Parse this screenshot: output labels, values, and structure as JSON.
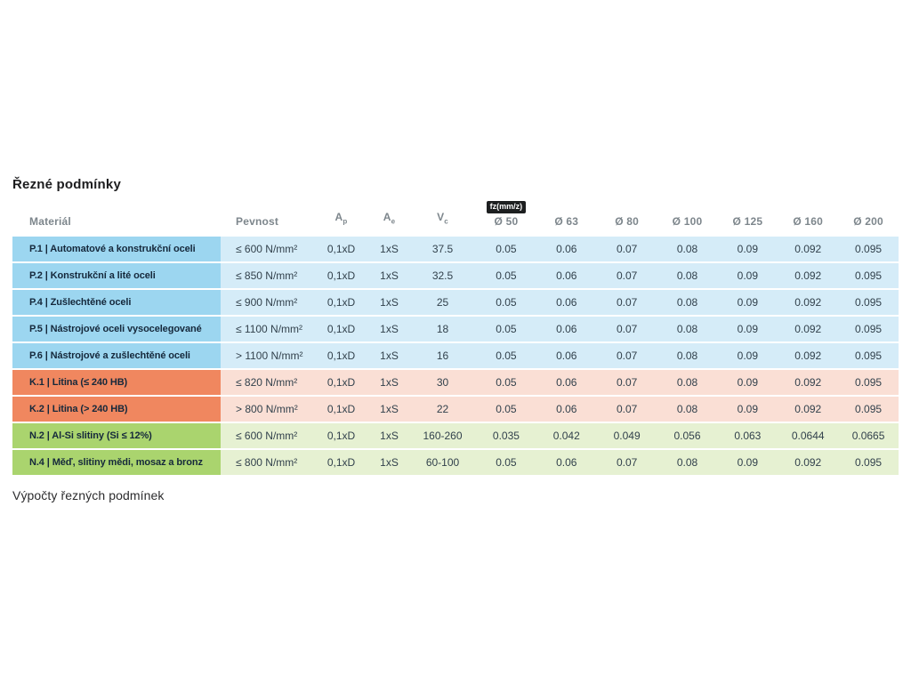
{
  "page": {
    "title": "Řezné podmínky",
    "footer_text": "Výpočty řezných podmínek",
    "background": "#ffffff"
  },
  "table": {
    "headers": {
      "material": "Materiál",
      "pevnost": "Pevnost",
      "ap": {
        "base": "A",
        "sub": "p"
      },
      "ae": {
        "base": "A",
        "sub": "e"
      },
      "vc": {
        "base": "V",
        "sub": "c"
      },
      "diameters": [
        "Ø 50",
        "Ø 63",
        "Ø 80",
        "Ø 100",
        "Ø 125",
        "Ø 160",
        "Ø 200"
      ]
    },
    "fz_badge": {
      "label": "fz(mm/z)",
      "bg": "#1d1f20",
      "fg": "#ffffff"
    },
    "group_colors": {
      "P": {
        "strong": "#9cd6f0",
        "light": "#d5ecf8"
      },
      "K": {
        "strong": "#f0875f",
        "light": "#fadfd5"
      },
      "N": {
        "strong": "#aad46e",
        "light": "#e6f1d2"
      }
    },
    "rows": [
      {
        "group": "P",
        "material": "P.1 | Automatové a konstrukční oceli",
        "pevnost": "≤ 600 N/mm²",
        "ap": "0,1xD",
        "ae": "1xS",
        "vc": "37.5",
        "fz": [
          "0.05",
          "0.06",
          "0.07",
          "0.08",
          "0.09",
          "0.092",
          "0.095"
        ]
      },
      {
        "group": "P",
        "material": "P.2 | Konstrukční a lité oceli",
        "pevnost": "≤ 850 N/mm²",
        "ap": "0,1xD",
        "ae": "1xS",
        "vc": "32.5",
        "fz": [
          "0.05",
          "0.06",
          "0.07",
          "0.08",
          "0.09",
          "0.092",
          "0.095"
        ]
      },
      {
        "group": "P",
        "material": "P.4 | Zušlechtěné oceli",
        "pevnost": "≤ 900 N/mm²",
        "ap": "0,1xD",
        "ae": "1xS",
        "vc": "25",
        "fz": [
          "0.05",
          "0.06",
          "0.07",
          "0.08",
          "0.09",
          "0.092",
          "0.095"
        ]
      },
      {
        "group": "P",
        "material": "P.5 | Nástrojové oceli vysocelegované",
        "pevnost": "≤ 1100 N/mm²",
        "ap": "0,1xD",
        "ae": "1xS",
        "vc": "18",
        "fz": [
          "0.05",
          "0.06",
          "0.07",
          "0.08",
          "0.09",
          "0.092",
          "0.095"
        ]
      },
      {
        "group": "P",
        "material": "P.6 | Nástrojové a zušlechtěné oceli",
        "pevnost": "> 1100 N/mm²",
        "ap": "0,1xD",
        "ae": "1xS",
        "vc": "16",
        "fz": [
          "0.05",
          "0.06",
          "0.07",
          "0.08",
          "0.09",
          "0.092",
          "0.095"
        ]
      },
      {
        "group": "K",
        "material": "K.1 | Litina (≤ 240 HB)",
        "pevnost": "≤ 820 N/mm²",
        "ap": "0,1xD",
        "ae": "1xS",
        "vc": "30",
        "fz": [
          "0.05",
          "0.06",
          "0.07",
          "0.08",
          "0.09",
          "0.092",
          "0.095"
        ]
      },
      {
        "group": "K",
        "material": "K.2 | Litina (> 240 HB)",
        "pevnost": "> 800 N/mm²",
        "ap": "0,1xD",
        "ae": "1xS",
        "vc": "22",
        "fz": [
          "0.05",
          "0.06",
          "0.07",
          "0.08",
          "0.09",
          "0.092",
          "0.095"
        ]
      },
      {
        "group": "N",
        "material": "N.2 | Al-Si slitiny (Si ≤ 12%)",
        "pevnost": "≤ 600 N/mm²",
        "ap": "0,1xD",
        "ae": "1xS",
        "vc": "160-260",
        "fz": [
          "0.035",
          "0.042",
          "0.049",
          "0.056",
          "0.063",
          "0.0644",
          "0.0665"
        ]
      },
      {
        "group": "N",
        "material": "N.4 | Měď, slitiny mědi, mosaz a bronz",
        "pevnost": "≤ 800 N/mm²",
        "ap": "0,1xD",
        "ae": "1xS",
        "vc": "60-100",
        "fz": [
          "0.05",
          "0.06",
          "0.07",
          "0.08",
          "0.09",
          "0.092",
          "0.095"
        ]
      }
    ]
  }
}
